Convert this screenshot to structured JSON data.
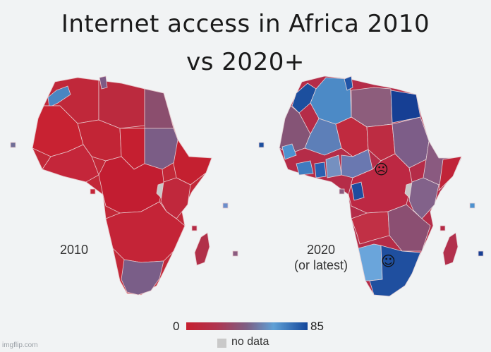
{
  "title": {
    "line1": "Internet access in Africa 2010",
    "line2": "vs 2020+"
  },
  "maps": [
    {
      "label": "2010"
    },
    {
      "label_line1": "2020",
      "label_line2": "(or latest)"
    }
  ],
  "legend": {
    "min_label": "0",
    "max_label": "85",
    "nodata_label": "no data",
    "colors": {
      "low": "#c61f2f",
      "mid_red": "#b0344f",
      "mid_purple": "#7d5f84",
      "mid_blue": "#5fa0d6",
      "high": "#13469a",
      "nodata": "#c9c9c9"
    }
  },
  "annotations": {
    "sad_face": "sad-face",
    "happy_face": "happy-face"
  },
  "watermark": "imgflip.com"
}
